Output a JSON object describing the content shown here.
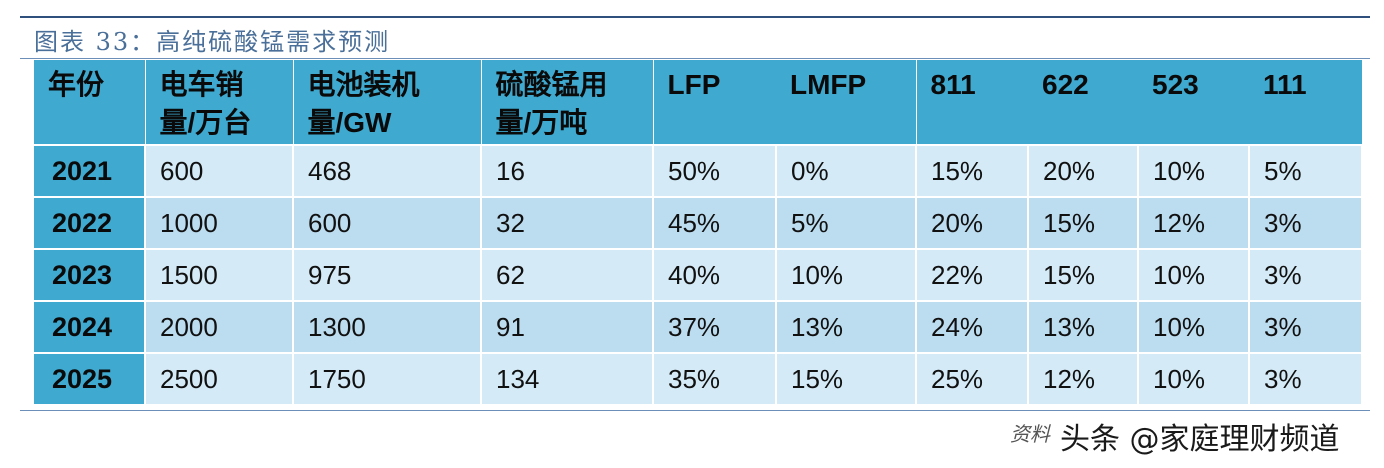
{
  "title": "图表 33：高纯硫酸锰需求预测",
  "table": {
    "headers": [
      [
        "年份"
      ],
      [
        "电车销",
        "量/万台"
      ],
      [
        "电池装机",
        "量/GW"
      ],
      [
        "硫酸锰用",
        "量/万吨"
      ],
      [
        "LFP"
      ],
      [
        "LMFP"
      ],
      [
        "811"
      ],
      [
        "622"
      ],
      [
        "523"
      ],
      [
        "111"
      ]
    ],
    "rows": [
      [
        "2021",
        "600",
        "468",
        "16",
        "50%",
        "0%",
        "15%",
        "20%",
        "10%",
        "5%"
      ],
      [
        "2022",
        "1000",
        "600",
        "32",
        "45%",
        "5%",
        "20%",
        "15%",
        "12%",
        "3%"
      ],
      [
        "2023",
        "1500",
        "975",
        "62",
        "40%",
        "10%",
        "22%",
        "15%",
        "10%",
        "3%"
      ],
      [
        "2024",
        "2000",
        "1300",
        "91",
        "37%",
        "13%",
        "24%",
        "13%",
        "10%",
        "3%"
      ],
      [
        "2025",
        "2500",
        "1750",
        "134",
        "35%",
        "15%",
        "25%",
        "12%",
        "10%",
        "3%"
      ]
    ]
  },
  "footer": {
    "source": "资料",
    "watermark": "头条 @家庭理财频道"
  }
}
